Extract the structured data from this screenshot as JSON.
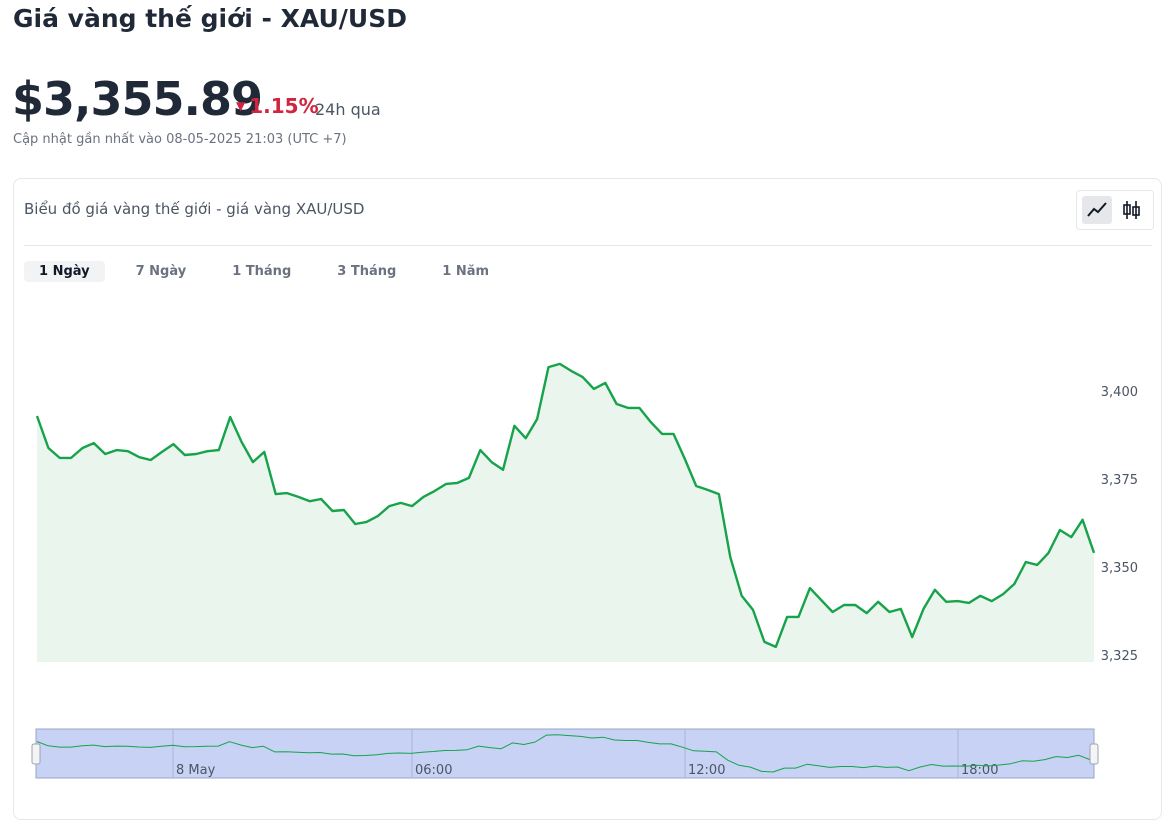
{
  "header": {
    "title": "Giá vàng thế giới - XAU/USD",
    "price": "$3,355.89",
    "change": "1.15%",
    "change_period": "24h qua",
    "updated": "Cập nhật gần nhất vào 08-05-2025 21:03 (UTC +7)"
  },
  "panel": {
    "title": "Biểu đồ giá vàng thế giới - giá vàng XAU/USD",
    "ranges": [
      "1 Ngày",
      "7 Ngày",
      "1 Tháng",
      "3 Tháng",
      "1 Năm"
    ]
  },
  "chart_data": {
    "type": "line",
    "color": "#16a34a",
    "series": [
      {
        "color": "#16a34a",
        "values": [
          3392.9,
          3383.8,
          3381.0,
          3381.0,
          3383.8,
          3385.2,
          3382.1,
          3383.2,
          3382.9,
          3381.2,
          3380.4,
          3382.7,
          3384.9,
          3381.8,
          3382.1,
          3382.9,
          3383.2,
          3392.6,
          3385.5,
          3379.8,
          3382.7,
          3370.7,
          3371.0,
          3369.9,
          3368.7,
          3369.3,
          3365.9,
          3366.2,
          3362.2,
          3362.8,
          3364.5,
          3367.3,
          3368.2,
          3367.3,
          3369.9,
          3371.6,
          3373.6,
          3373.9,
          3375.3,
          3383.2,
          3379.8,
          3377.6,
          3390.1,
          3386.6,
          3392.0,
          3406.8,
          3407.7,
          3405.7,
          3404.0,
          3400.6,
          3402.3,
          3396.3,
          3395.2,
          3395.2,
          3391.2,
          3387.8,
          3387.8,
          3380.7,
          3373.0,
          3371.9,
          3370.7,
          3352.8,
          3341.8,
          3337.8,
          3328.7,
          3327.3,
          3335.8,
          3335.8,
          3344.0,
          3340.6,
          3337.2,
          3339.2,
          3339.2,
          3336.9,
          3340.1,
          3337.2,
          3338.1,
          3330.1,
          3338.1,
          3343.5,
          3340.1,
          3340.3,
          3339.8,
          3341.8,
          3340.3,
          3342.3,
          3345.2,
          3351.4,
          3350.6,
          3354.0,
          3360.5,
          3358.5,
          3363.4,
          3354.0
        ]
      }
    ],
    "ylim": [
      3323,
      3420
    ],
    "yticks": [
      {
        "value": 3325,
        "label": "3,325"
      },
      {
        "value": 3350,
        "label": "3,350"
      },
      {
        "value": 3375,
        "label": "3,375"
      },
      {
        "value": 3400,
        "label": "3,400"
      }
    ],
    "navigator_labels": [
      "8 May",
      "06:00",
      "12:00",
      "18:00"
    ]
  }
}
